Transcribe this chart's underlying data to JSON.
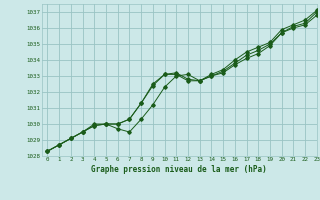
{
  "title": "Graphe pression niveau de la mer (hPa)",
  "bg_color": "#cce8e8",
  "grid_color": "#99c4c4",
  "line_color": "#1a5c1a",
  "xlim": [
    -0.5,
    23
  ],
  "ylim": [
    1028,
    1037.5
  ],
  "yticks": [
    1028,
    1029,
    1030,
    1031,
    1032,
    1033,
    1034,
    1035,
    1036,
    1037
  ],
  "xticks": [
    0,
    1,
    2,
    3,
    4,
    5,
    6,
    7,
    8,
    9,
    10,
    11,
    12,
    13,
    14,
    15,
    16,
    17,
    18,
    19,
    20,
    21,
    22,
    23
  ],
  "line1_x": [
    0,
    1,
    2,
    3,
    4,
    5,
    6,
    7,
    8,
    9,
    10,
    11,
    12,
    13,
    14,
    15,
    16,
    17,
    18,
    19,
    20,
    21,
    22,
    23
  ],
  "line1_y": [
    1028.3,
    1028.7,
    1029.1,
    1029.5,
    1029.9,
    1030.0,
    1030.0,
    1030.3,
    1031.3,
    1032.4,
    1033.1,
    1033.1,
    1032.7,
    1032.7,
    1033.0,
    1033.2,
    1033.7,
    1034.1,
    1034.4,
    1034.9,
    1035.7,
    1036.1,
    1036.3,
    1037.0
  ],
  "line2_x": [
    0,
    1,
    2,
    3,
    4,
    5,
    6,
    7,
    8,
    9,
    10,
    11,
    12,
    13,
    14,
    15,
    16,
    17,
    18,
    19,
    20,
    21,
    22,
    23
  ],
  "line2_y": [
    1028.3,
    1028.7,
    1029.1,
    1029.5,
    1029.9,
    1030.0,
    1029.7,
    1029.5,
    1030.3,
    1031.2,
    1032.3,
    1033.0,
    1033.1,
    1032.7,
    1033.0,
    1033.3,
    1033.8,
    1034.3,
    1034.6,
    1035.0,
    1035.7,
    1036.0,
    1036.2,
    1036.8
  ],
  "line3_x": [
    0,
    1,
    2,
    3,
    4,
    5,
    6,
    7,
    8,
    9,
    10,
    11,
    12,
    13,
    14,
    15,
    16,
    17,
    18,
    19,
    20,
    21,
    22,
    23
  ],
  "line3_y": [
    1028.3,
    1028.7,
    1029.1,
    1029.5,
    1030.0,
    1030.0,
    1030.0,
    1030.3,
    1031.3,
    1032.5,
    1033.1,
    1033.2,
    1032.8,
    1032.7,
    1033.1,
    1033.4,
    1034.0,
    1034.5,
    1034.8,
    1035.1,
    1035.9,
    1036.2,
    1036.5,
    1037.1
  ]
}
